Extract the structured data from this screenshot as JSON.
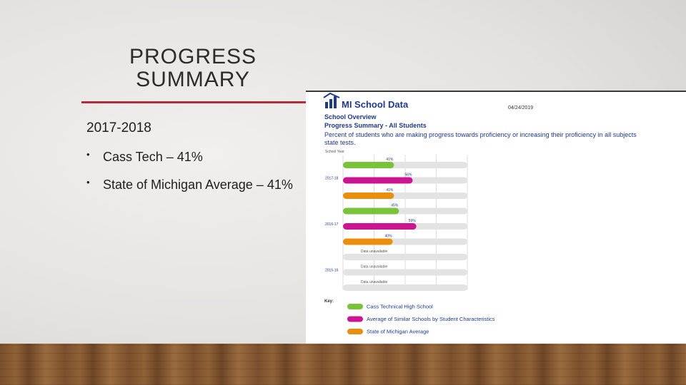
{
  "slide": {
    "title_line1": "PROGRESS",
    "title_line2": "SUMMARY",
    "year": "2017-2018",
    "bullets": [
      "Cass Tech – 41%",
      "State of Michigan Average – 41%"
    ]
  },
  "screenshot": {
    "logo": "MI School Data",
    "date": "04/24/2019",
    "section": "School Overview",
    "heading": "Progress Summary - All Students",
    "description_line1": "Percent of students who are making progress towards proficiency or increasing their proficiency in all subjects",
    "description_line2": "state tests.",
    "school_year_label": "School Year",
    "key_label": "Key:"
  },
  "chart_data": {
    "type": "bar",
    "orientation": "horizontal",
    "xlim": [
      0,
      100
    ],
    "series": [
      {
        "name": "Cass Technical High School",
        "color": "#7ac23a"
      },
      {
        "name": "Average of Similar Schools by Student Characteristics",
        "color": "#cc1590"
      },
      {
        "name": "State of Michigan Average",
        "color": "#e8900e"
      }
    ],
    "groups": [
      {
        "label": "2017-18",
        "bars": [
          {
            "value": 41,
            "label": "41%"
          },
          {
            "value": 56,
            "label": "56%"
          },
          {
            "value": 41,
            "label": "41%"
          }
        ]
      },
      {
        "label": "2016-17",
        "bars": [
          {
            "value": 45,
            "label": "45%"
          },
          {
            "value": 59,
            "label": "59%"
          },
          {
            "value": 40,
            "label": "40%"
          }
        ]
      },
      {
        "label": "2015-16",
        "bars": [
          {
            "value": null,
            "label": "Data unavailable"
          },
          {
            "value": null,
            "label": "Data unavailable"
          },
          {
            "value": null,
            "label": "Data unavailable"
          }
        ]
      }
    ]
  },
  "colors": {
    "accent_rule": "#b32c3a",
    "header_blue": "#1f3a8a"
  }
}
